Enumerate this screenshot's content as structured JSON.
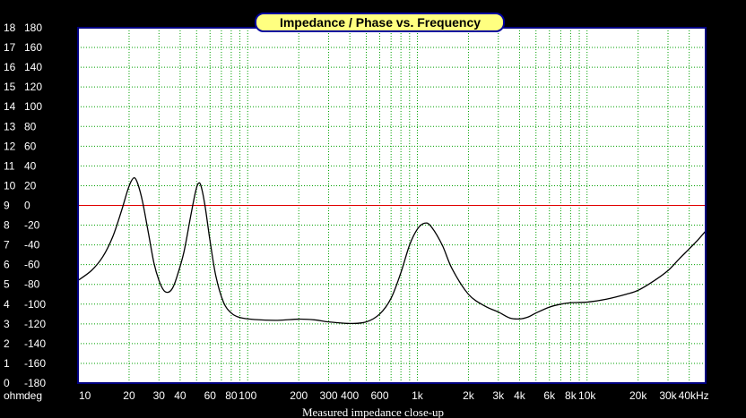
{
  "chart_data": {
    "type": "line",
    "title": "Impedance / Phase vs. Frequency",
    "caption": "Measured impedance close-up",
    "x_scale": "log",
    "xlim": [
      10,
      50000
    ],
    "x_ticks": [
      {
        "value": 10,
        "label": "10"
      },
      {
        "value": 20,
        "label": "20"
      },
      {
        "value": 30,
        "label": "30"
      },
      {
        "value": 40,
        "label": "40"
      },
      {
        "value": 60,
        "label": "60"
      },
      {
        "value": 80,
        "label": "80"
      },
      {
        "value": 100,
        "label": "100"
      },
      {
        "value": 200,
        "label": "200"
      },
      {
        "value": 300,
        "label": "300"
      },
      {
        "value": 400,
        "label": "400"
      },
      {
        "value": 600,
        "label": "600"
      },
      {
        "value": 1000,
        "label": "1k"
      },
      {
        "value": 2000,
        "label": "2k"
      },
      {
        "value": 3000,
        "label": "3k"
      },
      {
        "value": 4000,
        "label": "4k"
      },
      {
        "value": 6000,
        "label": "6k"
      },
      {
        "value": 8000,
        "label": "8k"
      },
      {
        "value": 10000,
        "label": "10k"
      },
      {
        "value": 20000,
        "label": "20k"
      },
      {
        "value": 30000,
        "label": "30k"
      },
      {
        "value": 40000,
        "label": "40kHz"
      }
    ],
    "ylim_ohm": [
      0,
      18
    ],
    "ylim_deg": [
      -180,
      180
    ],
    "y_ticks_ohm": [
      "0",
      "1",
      "2",
      "3",
      "4",
      "5",
      "6",
      "7",
      "8",
      "9",
      "10",
      "11",
      "12",
      "13",
      "14",
      "15",
      "16",
      "17",
      "18"
    ],
    "y_ticks_deg": [
      "-180",
      "-160",
      "-140",
      "-120",
      "-100",
      "-80",
      "-60",
      "-40",
      "-20",
      "0",
      "20",
      "40",
      "60",
      "80",
      "100",
      "120",
      "140",
      "160",
      "180"
    ],
    "y_unit_ohm": "ohm",
    "y_unit_deg": "deg",
    "grid": true,
    "colors": {
      "background": "#000000",
      "plot_bg": "#ffffff",
      "frame": "#000080",
      "grid": "#00a000",
      "zero_line": "#e00000",
      "impedance": "#000000",
      "title_bg": "#ffff80",
      "title_border": "#0000a0"
    },
    "zero_line_deg": 0,
    "series": [
      {
        "unit": "ohm",
        "points": [
          [
            10,
            5.2
          ],
          [
            12,
            5.7
          ],
          [
            14,
            6.4
          ],
          [
            16,
            7.4
          ],
          [
            18,
            8.7
          ],
          [
            19.5,
            9.7
          ],
          [
            20.5,
            10.2
          ],
          [
            21.5,
            10.4
          ],
          [
            22.5,
            10.1
          ],
          [
            24,
            9.2
          ],
          [
            26,
            7.6
          ],
          [
            28,
            6.1
          ],
          [
            30,
            5.2
          ],
          [
            32,
            4.7
          ],
          [
            34,
            4.6
          ],
          [
            36,
            4.8
          ],
          [
            38,
            5.3
          ],
          [
            42,
            6.6
          ],
          [
            46,
            8.4
          ],
          [
            49,
            9.6
          ],
          [
            51,
            10.1
          ],
          [
            53,
            10.0
          ],
          [
            56,
            9.0
          ],
          [
            60,
            7.2
          ],
          [
            65,
            5.4
          ],
          [
            72,
            4.1
          ],
          [
            80,
            3.55
          ],
          [
            90,
            3.32
          ],
          [
            110,
            3.22
          ],
          [
            150,
            3.18
          ],
          [
            200,
            3.24
          ],
          [
            250,
            3.2
          ],
          [
            300,
            3.1
          ],
          [
            400,
            3.02
          ],
          [
            500,
            3.1
          ],
          [
            600,
            3.5
          ],
          [
            700,
            4.3
          ],
          [
            800,
            5.6
          ],
          [
            900,
            7.0
          ],
          [
            1000,
            7.8
          ],
          [
            1100,
            8.1
          ],
          [
            1200,
            7.95
          ],
          [
            1400,
            7.0
          ],
          [
            1600,
            5.8
          ],
          [
            2000,
            4.5
          ],
          [
            2500,
            3.9
          ],
          [
            3000,
            3.6
          ],
          [
            3500,
            3.3
          ],
          [
            4000,
            3.25
          ],
          [
            4500,
            3.35
          ],
          [
            5000,
            3.55
          ],
          [
            6000,
            3.85
          ],
          [
            7000,
            4.0
          ],
          [
            8000,
            4.07
          ],
          [
            10000,
            4.1
          ],
          [
            13000,
            4.25
          ],
          [
            17000,
            4.5
          ],
          [
            20000,
            4.7
          ],
          [
            25000,
            5.2
          ],
          [
            30000,
            5.7
          ],
          [
            35000,
            6.3
          ],
          [
            40000,
            6.8
          ],
          [
            45000,
            7.25
          ],
          [
            50000,
            7.7
          ]
        ]
      }
    ]
  }
}
